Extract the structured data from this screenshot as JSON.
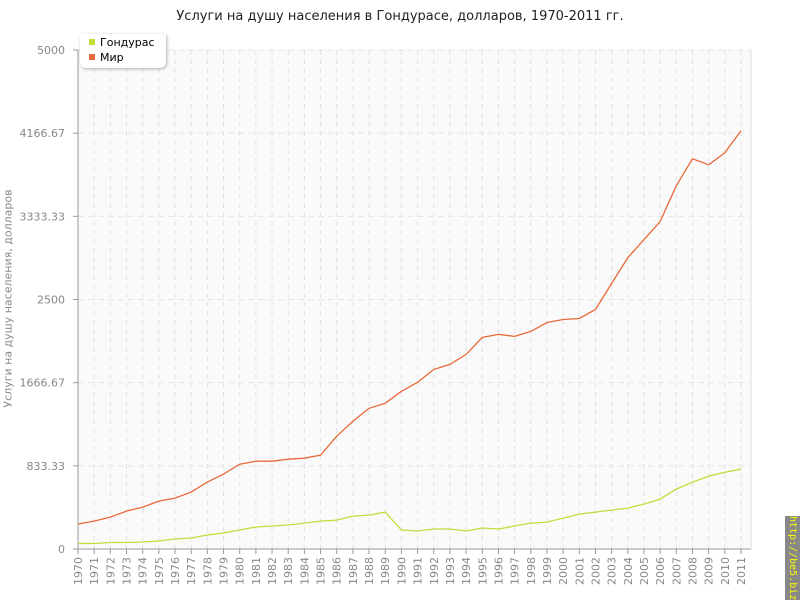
{
  "chart_data": {
    "type": "line",
    "title": "Услуги на душу населения в Гондурасе, долларов, 1970-2011 гг.",
    "xlabel": "",
    "ylabel": "Услуги на душу населения, долларов",
    "ylim": [
      0,
      5000
    ],
    "yticks": [
      "0",
      "833.33",
      "1666.67",
      "2500",
      "3333.33",
      "4166.67",
      "5000"
    ],
    "grid": true,
    "legend_position": "top-left",
    "x": [
      1970,
      1971,
      1972,
      1973,
      1974,
      1975,
      1976,
      1977,
      1978,
      1979,
      1980,
      1981,
      1982,
      1983,
      1984,
      1985,
      1986,
      1987,
      1988,
      1989,
      1990,
      1991,
      1992,
      1993,
      1994,
      1995,
      1996,
      1997,
      1998,
      1999,
      2000,
      2001,
      2002,
      2003,
      2004,
      2005,
      2006,
      2007,
      2008,
      2009,
      2010,
      2011
    ],
    "series": [
      {
        "name": "Гондурас",
        "color": "#c2dd3a",
        "values": [
          55,
          55,
          65,
          65,
          70,
          80,
          100,
          110,
          140,
          160,
          190,
          220,
          230,
          240,
          260,
          280,
          290,
          330,
          340,
          370,
          190,
          180,
          200,
          200,
          180,
          210,
          200,
          230,
          260,
          270,
          310,
          350,
          370,
          390,
          410,
          450,
          500,
          600,
          670,
          730,
          770,
          800
        ]
      },
      {
        "name": "Мир",
        "color": "#e8693a",
        "values": [
          250,
          280,
          320,
          380,
          420,
          480,
          510,
          570,
          670,
          750,
          850,
          880,
          880,
          900,
          910,
          940,
          1130,
          1280,
          1410,
          1460,
          1580,
          1670,
          1800,
          1850,
          1950,
          2120,
          2150,
          2130,
          2180,
          2270,
          2300,
          2310,
          2400,
          2660,
          2920,
          3100,
          3280,
          3640,
          3910,
          3850,
          3970,
          4190
        ]
      }
    ]
  },
  "watermark": "http://be5.biz"
}
